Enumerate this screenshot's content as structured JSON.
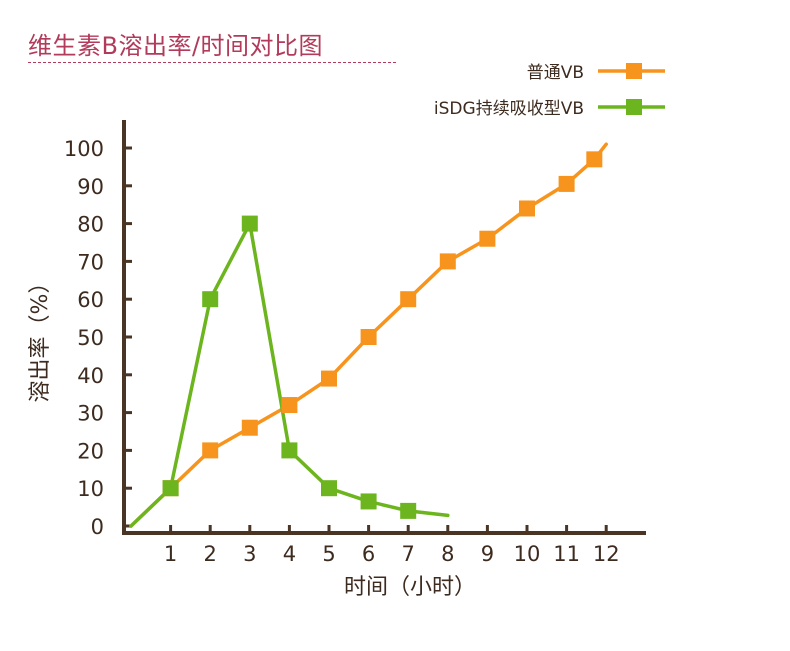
{
  "chart_data": {
    "type": "line",
    "title": "维生素B溶出率/时间对比图",
    "xlabel": "时间（小时）",
    "ylabel": "溶出率（%）",
    "x_ticks": [
      "1",
      "2",
      "3",
      "4",
      "5",
      "6",
      "7",
      "8",
      "9",
      "10",
      "11",
      "12"
    ],
    "y_ticks": [
      "0",
      "10",
      "20",
      "30",
      "40",
      "50",
      "60",
      "70",
      "80",
      "90",
      "100"
    ],
    "xlim": [
      0,
      12.5
    ],
    "ylim": [
      0,
      105
    ],
    "legend_position": "top-right",
    "series": [
      {
        "name": "普通VB",
        "color": "#f7941d",
        "marker": "square",
        "line_points": [
          {
            "x": 0,
            "y": 0
          },
          {
            "x": 1,
            "y": 10
          },
          {
            "x": 2,
            "y": 20
          },
          {
            "x": 3,
            "y": 26
          },
          {
            "x": 4,
            "y": 32
          },
          {
            "x": 5,
            "y": 39
          },
          {
            "x": 6,
            "y": 50
          },
          {
            "x": 7,
            "y": 60
          },
          {
            "x": 8,
            "y": 70
          },
          {
            "x": 9,
            "y": 76
          },
          {
            "x": 10,
            "y": 84
          },
          {
            "x": 11,
            "y": 90.5
          },
          {
            "x": 11.7,
            "y": 97
          },
          {
            "x": 12,
            "y": 101
          }
        ],
        "markers": [
          {
            "x": 1,
            "y": 10
          },
          {
            "x": 2,
            "y": 20
          },
          {
            "x": 3,
            "y": 26
          },
          {
            "x": 4,
            "y": 32
          },
          {
            "x": 5,
            "y": 39
          },
          {
            "x": 6,
            "y": 50
          },
          {
            "x": 7,
            "y": 60
          },
          {
            "x": 8,
            "y": 70
          },
          {
            "x": 9,
            "y": 76
          },
          {
            "x": 10,
            "y": 84
          },
          {
            "x": 11,
            "y": 90.5
          },
          {
            "x": 11.7,
            "y": 97
          }
        ]
      },
      {
        "name": "iSDG持续吸收型VB",
        "color": "#6cb51e",
        "marker": "square",
        "line_points": [
          {
            "x": 0,
            "y": 0
          },
          {
            "x": 1,
            "y": 10
          },
          {
            "x": 2,
            "y": 60
          },
          {
            "x": 3,
            "y": 80
          },
          {
            "x": 4,
            "y": 20
          },
          {
            "x": 5,
            "y": 10
          },
          {
            "x": 6,
            "y": 6.5
          },
          {
            "x": 7,
            "y": 4
          },
          {
            "x": 8,
            "y": 2.8
          }
        ],
        "markers": [
          {
            "x": 1,
            "y": 10
          },
          {
            "x": 2,
            "y": 60
          },
          {
            "x": 3,
            "y": 80
          },
          {
            "x": 4,
            "y": 20
          },
          {
            "x": 5,
            "y": 10
          },
          {
            "x": 6,
            "y": 6.5
          },
          {
            "x": 7,
            "y": 4
          }
        ]
      }
    ]
  }
}
